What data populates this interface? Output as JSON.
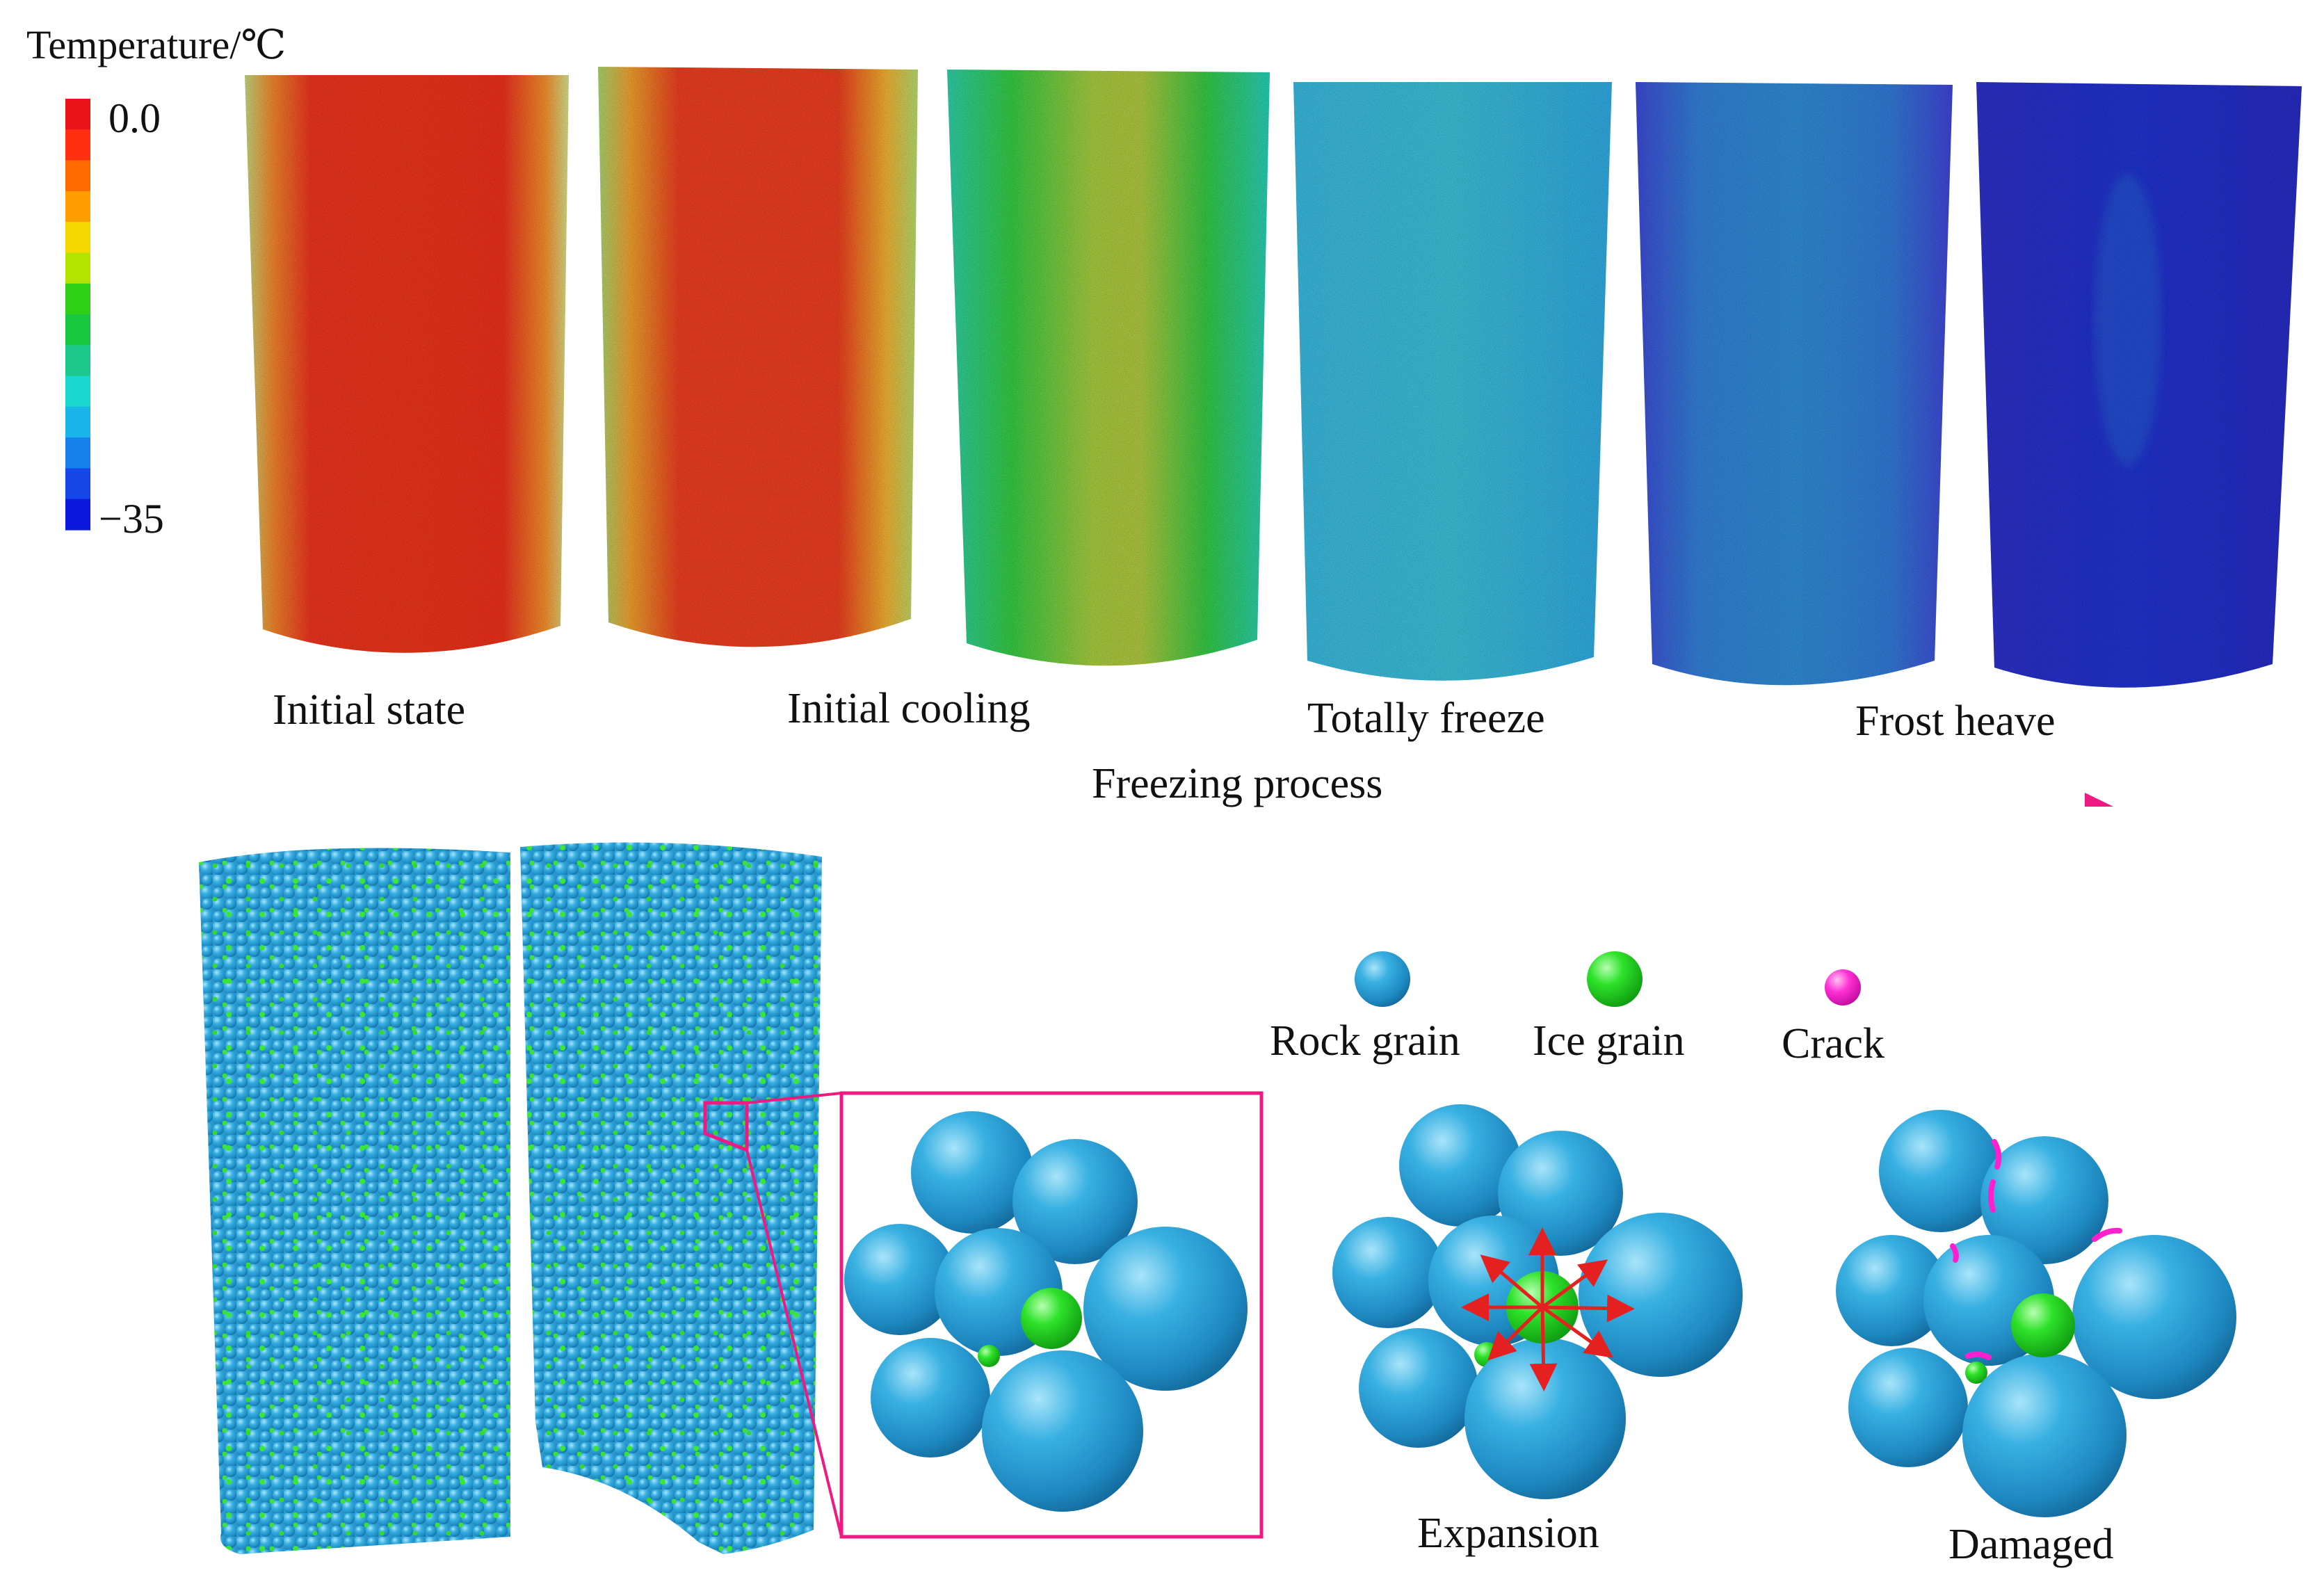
{
  "legend": {
    "title": "Temperature/℃",
    "max_label": "0.0",
    "min_label": "−35",
    "colors": [
      "#e8141a",
      "#ff3010",
      "#ff6a00",
      "#ff9e00",
      "#f5d800",
      "#b5e300",
      "#2fcf18",
      "#18c83c",
      "#1ec88a",
      "#19d6cf",
      "#17b5ea",
      "#1680ec",
      "#1446e8",
      "#0a18e0"
    ]
  },
  "stages": [
    {
      "label": "Initial state"
    },
    {
      "label": "Initial cooling"
    },
    {
      "label": "Totally freeze"
    },
    {
      "label": "Frost heave"
    }
  ],
  "process_label": "Freezing process",
  "particle_legend": {
    "rock": "Rock grain",
    "ice": "Ice grain",
    "crack": "Crack"
  },
  "panels": {
    "expansion": "Expansion",
    "damaged": "Damaged"
  },
  "colors": {
    "accent": "#ee1a82",
    "rock": "#2aa7dd",
    "ice": "#1fe01a",
    "crack": "#ff1fcf",
    "arrow_red": "#e52020"
  }
}
